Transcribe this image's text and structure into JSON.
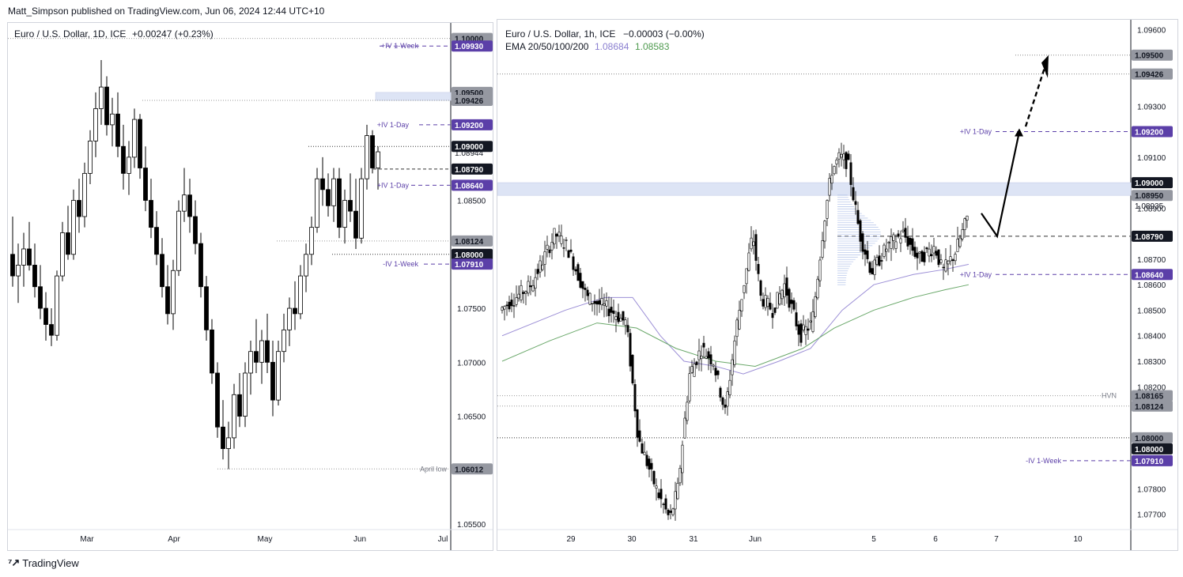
{
  "header": {
    "publisher_line": "Matt_Simpson published on TradingView.com, Jun 06, 2024 12:44 UTC+10"
  },
  "footer": {
    "brand": "TradingView",
    "logo_icon": "tradingview-logo-icon"
  },
  "colors": {
    "up": "#ffffff",
    "down": "#000000",
    "iv_label": "#5b3fa8",
    "ema_purple": "#9c8fd6",
    "ema_green": "#6aa86a",
    "zone": "#dde4f5"
  },
  "chart_data": [
    {
      "type": "candlestick",
      "symbol_line": "Euro / U.S. Dollar, 1D, ICE",
      "change": "+0.00247 (+0.23%)",
      "ylim": [
        1.0545,
        1.101
      ],
      "x_ticks": [
        "Mar",
        "Apr",
        "May",
        "Jun",
        "Jul"
      ],
      "y_ticks": [
        "1.07500",
        "1.07000",
        "1.06500",
        "1.05500",
        "1.08500"
      ],
      "price_labels": [
        {
          "text": "1.10000",
          "value": 1.1,
          "style": "gray"
        },
        {
          "text": "1.09930",
          "value": 1.0993,
          "style": "purple"
        },
        {
          "text": "1.09500",
          "value": 1.095,
          "style": "gray"
        },
        {
          "text": "1.09426",
          "value": 1.09426,
          "style": "gray"
        },
        {
          "text": "1.09200",
          "value": 1.092,
          "style": "purple"
        },
        {
          "text": "1.09000",
          "value": 1.09,
          "style": "black"
        },
        {
          "text": "1.08944",
          "value": 1.08944,
          "style": "plain"
        },
        {
          "text": "1.08790",
          "value": 1.0879,
          "style": "black"
        },
        {
          "text": "1.08640",
          "value": 1.0864,
          "style": "purple"
        },
        {
          "text": "1.08124",
          "value": 1.08124,
          "style": "gray"
        },
        {
          "text": "1.08000",
          "value": 1.08,
          "style": "black"
        },
        {
          "text": "1.07910",
          "value": 1.0791,
          "style": "purple"
        },
        {
          "text": "1.06012",
          "value": 1.06012,
          "style": "gray"
        }
      ],
      "annotations": [
        {
          "text": "+IV 1-Week",
          "value": 1.0993
        },
        {
          "text": "+IV 1-Day",
          "value": 1.092
        },
        {
          "text": "+IV 1-Day",
          "value": 1.0864
        },
        {
          "text": "-IV 1-Week",
          "value": 1.0791
        },
        {
          "text": "April low",
          "value": 1.06012
        }
      ],
      "candles": [
        [
          1.08,
          1.0835,
          1.077,
          1.078
        ],
        [
          1.078,
          1.081,
          1.0755,
          1.079
        ],
        [
          1.079,
          1.082,
          1.077,
          1.0805
        ],
        [
          1.0805,
          1.083,
          1.0785,
          1.079
        ],
        [
          1.079,
          1.081,
          1.076,
          1.077
        ],
        [
          1.077,
          1.079,
          1.074,
          1.075
        ],
        [
          1.075,
          1.0765,
          1.072,
          1.0735
        ],
        [
          1.0735,
          1.075,
          1.0715,
          1.0725
        ],
        [
          1.0725,
          1.0785,
          1.072,
          1.078
        ],
        [
          1.078,
          1.083,
          1.0775,
          1.082
        ],
        [
          1.082,
          1.0845,
          1.0795,
          1.08
        ],
        [
          1.08,
          1.086,
          1.0795,
          1.085
        ],
        [
          1.085,
          1.087,
          1.082,
          1.0835
        ],
        [
          1.0835,
          1.0885,
          1.0825,
          1.0875
        ],
        [
          1.0875,
          1.0915,
          1.0865,
          1.0905
        ],
        [
          1.0905,
          1.095,
          1.089,
          1.0935
        ],
        [
          1.0935,
          1.098,
          1.092,
          1.0955
        ],
        [
          1.0955,
          1.0965,
          1.091,
          1.092
        ],
        [
          1.092,
          1.0945,
          1.09,
          1.093
        ],
        [
          1.093,
          1.095,
          1.089,
          1.09
        ],
        [
          1.09,
          1.092,
          1.086,
          1.0875
        ],
        [
          1.0875,
          1.0905,
          1.0855,
          1.089
        ],
        [
          1.089,
          1.0935,
          1.088,
          1.0925
        ],
        [
          1.0925,
          1.093,
          1.087,
          1.088
        ],
        [
          1.088,
          1.09,
          1.084,
          1.085
        ],
        [
          1.085,
          1.087,
          1.0815,
          1.0825
        ],
        [
          1.0825,
          1.084,
          1.079,
          1.08
        ],
        [
          1.08,
          1.0815,
          1.076,
          1.077
        ],
        [
          1.077,
          1.079,
          1.0735,
          1.0745
        ],
        [
          1.0745,
          1.0795,
          1.073,
          1.0785
        ],
        [
          1.0785,
          1.085,
          1.078,
          1.084
        ],
        [
          1.084,
          1.088,
          1.083,
          1.0855
        ],
        [
          1.0855,
          1.087,
          1.082,
          1.0835
        ],
        [
          1.0835,
          1.085,
          1.08,
          1.081
        ],
        [
          1.081,
          1.082,
          1.076,
          1.077
        ],
        [
          1.077,
          1.078,
          1.072,
          1.073
        ],
        [
          1.073,
          1.074,
          1.068,
          1.069
        ],
        [
          1.069,
          1.07,
          1.063,
          1.064
        ],
        [
          1.064,
          1.0665,
          1.061,
          1.062
        ],
        [
          1.062,
          1.0645,
          1.0601,
          1.063
        ],
        [
          1.063,
          1.068,
          1.062,
          1.067
        ],
        [
          1.067,
          1.069,
          1.064,
          1.065
        ],
        [
          1.065,
          1.07,
          1.064,
          1.069
        ],
        [
          1.069,
          1.072,
          1.067,
          1.071
        ],
        [
          1.071,
          1.074,
          1.069,
          1.07
        ],
        [
          1.07,
          1.073,
          1.068,
          1.072
        ],
        [
          1.072,
          1.0745,
          1.069,
          1.07
        ],
        [
          1.07,
          1.072,
          1.065,
          1.0665
        ],
        [
          1.0665,
          1.072,
          1.066,
          1.071
        ],
        [
          1.071,
          1.0745,
          1.07,
          1.073
        ],
        [
          1.073,
          1.076,
          1.0715,
          1.075
        ],
        [
          1.075,
          1.0775,
          1.073,
          1.0745
        ],
        [
          1.0745,
          1.079,
          1.074,
          1.078
        ],
        [
          1.078,
          1.081,
          1.0765,
          1.08
        ],
        [
          1.08,
          1.0835,
          1.079,
          1.0825
        ],
        [
          1.0825,
          1.088,
          1.082,
          1.087
        ],
        [
          1.087,
          1.089,
          1.0845,
          1.086
        ],
        [
          1.086,
          1.0875,
          1.0835,
          1.0845
        ],
        [
          1.0845,
          1.088,
          1.083,
          1.087
        ],
        [
          1.087,
          1.088,
          1.0815,
          1.0825
        ],
        [
          1.0825,
          1.086,
          1.081,
          1.085
        ],
        [
          1.085,
          1.0875,
          1.083,
          1.084
        ],
        [
          1.084,
          1.087,
          1.0805,
          1.0815
        ],
        [
          1.0815,
          1.088,
          1.081,
          1.087
        ],
        [
          1.087,
          1.092,
          1.086,
          1.091
        ],
        [
          1.091,
          1.0915,
          1.0875,
          1.088
        ],
        [
          1.088,
          1.09,
          1.086,
          1.0895
        ]
      ]
    },
    {
      "type": "candlestick",
      "symbol_line": "Euro / U.S. Dollar, 1h, ICE",
      "change": "−0.00003 (−0.00%)",
      "indicator_line": {
        "label": "EMA 20/50/100/200",
        "value1": "1.08684",
        "value2": "1.08583"
      },
      "ylim": [
        1.0764,
        1.0962
      ],
      "x_ticks": [
        "29",
        "30",
        "31",
        "Jun",
        "5",
        "6",
        "7",
        "10"
      ],
      "y_ticks": [
        "1.09600",
        "1.09300",
        "1.09100",
        "1.08900",
        "1.08700",
        "1.08600",
        "1.08500",
        "1.08400",
        "1.08300",
        "1.08200",
        "1.07800",
        "1.07700"
      ],
      "price_labels": [
        {
          "text": "1.09500",
          "value": 1.095,
          "style": "gray"
        },
        {
          "text": "1.09426",
          "value": 1.09426,
          "style": "gray"
        },
        {
          "text": "1.09200",
          "value": 1.092,
          "style": "purple"
        },
        {
          "text": "1.09000",
          "value": 1.09,
          "style": "black"
        },
        {
          "text": "1.08950",
          "value": 1.0895,
          "style": "gray"
        },
        {
          "text": "1.08935",
          "value": 1.08935,
          "style": "plain"
        },
        {
          "text": "1.08790",
          "value": 1.0879,
          "style": "black"
        },
        {
          "text": "1.08640",
          "value": 1.0864,
          "style": "purple"
        },
        {
          "text": "1.08165",
          "value": 1.08165,
          "style": "gray"
        },
        {
          "text": "1.08124",
          "value": 1.08124,
          "style": "gray"
        },
        {
          "text": "1.08000",
          "value": 1.08,
          "style": "gray"
        },
        {
          "text": "1.08000",
          "value": 1.08,
          "style": "black"
        },
        {
          "text": "1.07910",
          "value": 1.0791,
          "style": "purple"
        }
      ],
      "annotations": [
        {
          "text": "+IV 1-Day",
          "value": 1.092
        },
        {
          "text": "+IV 1-Day",
          "value": 1.0864
        },
        {
          "text": "HVN",
          "value": 1.08165
        },
        {
          "text": "-IV 1-Week",
          "value": 1.0791
        }
      ]
    }
  ]
}
